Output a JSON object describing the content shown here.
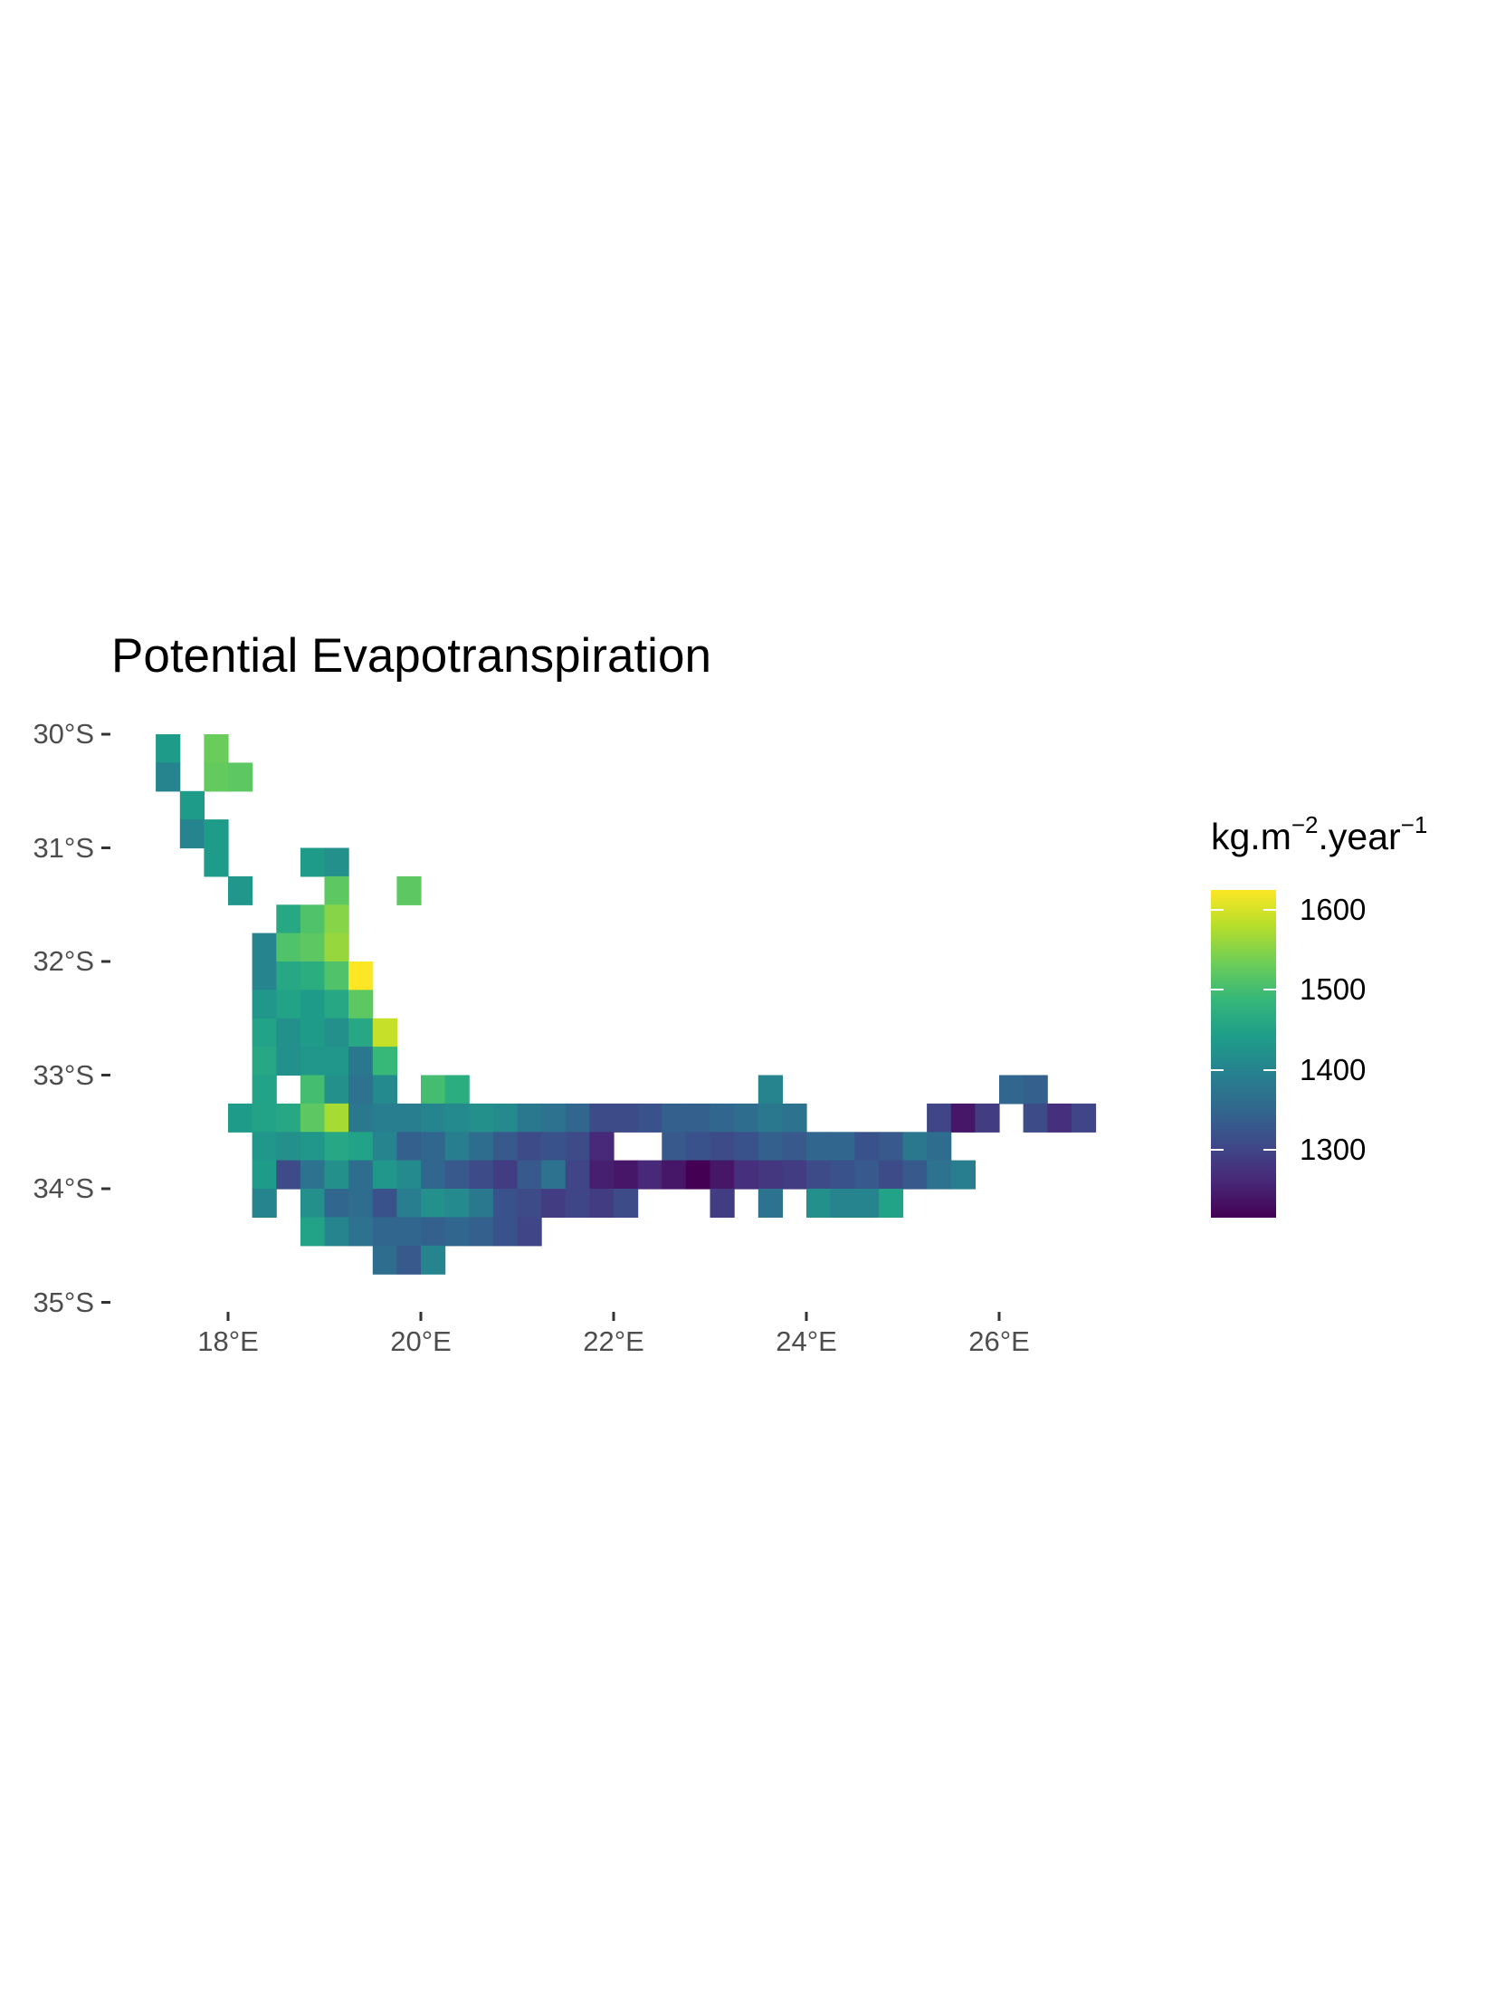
{
  "chart_data": {
    "type": "heatmap",
    "title": "Potential Evapotranspiration",
    "legend": {
      "title_base": "kg.m",
      "title_exp1": "−2",
      "title_mid": ".year",
      "title_exp2": "−1",
      "ticks": [
        "1300",
        "1400",
        "1500",
        "1600"
      ],
      "tick_values": [
        1300,
        1400,
        1500,
        1600
      ],
      "range": [
        1215,
        1625
      ],
      "position": "right",
      "palette": [
        "#440154",
        "#482878",
        "#3e4989",
        "#31688e",
        "#26828e",
        "#1f9e89",
        "#35b779",
        "#6ece58",
        "#b5de2b",
        "#fde725"
      ]
    },
    "x_ticks": [
      "18°E",
      "20°E",
      "22°E",
      "24°E",
      "26°E"
    ],
    "x_tick_values": [
      18,
      20,
      22,
      24,
      26
    ],
    "y_ticks": [
      "30°S",
      "31°S",
      "32°S",
      "33°S",
      "34°S",
      "35°S"
    ],
    "y_tick_values": [
      -30,
      -31,
      -32,
      -33,
      -34,
      -35
    ],
    "xlim": [
      16.95,
      27.1
    ],
    "ylim": [
      -35.0,
      -30.0
    ],
    "grid": false,
    "cell_size_deg": 0.25,
    "cells": [
      [
        17.375,
        -30.125,
        1440
      ],
      [
        17.875,
        -30.125,
        1530
      ],
      [
        17.375,
        -30.375,
        1400
      ],
      [
        17.875,
        -30.375,
        1525
      ],
      [
        18.125,
        -30.375,
        1520
      ],
      [
        17.625,
        -30.625,
        1440
      ],
      [
        17.625,
        -30.875,
        1400
      ],
      [
        17.875,
        -30.875,
        1440
      ],
      [
        17.875,
        -31.125,
        1440
      ],
      [
        18.875,
        -31.125,
        1440
      ],
      [
        19.125,
        -31.125,
        1420
      ],
      [
        18.125,
        -31.375,
        1430
      ],
      [
        19.125,
        -31.375,
        1520
      ],
      [
        19.875,
        -31.375,
        1520
      ],
      [
        18.625,
        -31.625,
        1460
      ],
      [
        18.875,
        -31.625,
        1510
      ],
      [
        19.125,
        -31.625,
        1550
      ],
      [
        18.375,
        -31.875,
        1400
      ],
      [
        18.625,
        -31.875,
        1510
      ],
      [
        18.875,
        -31.875,
        1520
      ],
      [
        19.125,
        -31.875,
        1560
      ],
      [
        18.375,
        -32.125,
        1400
      ],
      [
        18.625,
        -32.125,
        1460
      ],
      [
        18.875,
        -32.125,
        1470
      ],
      [
        19.125,
        -32.125,
        1510
      ],
      [
        19.375,
        -32.125,
        1625
      ],
      [
        18.375,
        -32.375,
        1430
      ],
      [
        18.625,
        -32.375,
        1450
      ],
      [
        18.875,
        -32.375,
        1440
      ],
      [
        19.125,
        -32.375,
        1460
      ],
      [
        19.375,
        -32.375,
        1520
      ],
      [
        18.375,
        -32.625,
        1450
      ],
      [
        18.625,
        -32.625,
        1420
      ],
      [
        18.875,
        -32.625,
        1440
      ],
      [
        19.125,
        -32.625,
        1420
      ],
      [
        19.375,
        -32.625,
        1460
      ],
      [
        19.625,
        -32.625,
        1590
      ],
      [
        18.375,
        -32.875,
        1460
      ],
      [
        18.625,
        -32.875,
        1420
      ],
      [
        18.875,
        -32.875,
        1430
      ],
      [
        19.125,
        -32.875,
        1430
      ],
      [
        19.375,
        -32.875,
        1380
      ],
      [
        19.625,
        -32.875,
        1490
      ],
      [
        18.375,
        -33.125,
        1450
      ],
      [
        18.875,
        -33.125,
        1500
      ],
      [
        19.125,
        -33.125,
        1420
      ],
      [
        19.375,
        -33.125,
        1370
      ],
      [
        19.625,
        -33.125,
        1410
      ],
      [
        20.125,
        -33.125,
        1500
      ],
      [
        20.375,
        -33.125,
        1470
      ],
      [
        23.625,
        -33.125,
        1400
      ],
      [
        26.125,
        -33.125,
        1350
      ],
      [
        26.375,
        -33.125,
        1340
      ],
      [
        18.125,
        -33.375,
        1440
      ],
      [
        18.375,
        -33.375,
        1450
      ],
      [
        18.625,
        -33.375,
        1460
      ],
      [
        18.875,
        -33.375,
        1520
      ],
      [
        19.125,
        -33.375,
        1570
      ],
      [
        19.375,
        -33.375,
        1380
      ],
      [
        19.625,
        -33.375,
        1390
      ],
      [
        19.875,
        -33.375,
        1390
      ],
      [
        20.125,
        -33.375,
        1400
      ],
      [
        20.375,
        -33.375,
        1410
      ],
      [
        20.625,
        -33.375,
        1420
      ],
      [
        20.875,
        -33.375,
        1410
      ],
      [
        21.125,
        -33.375,
        1380
      ],
      [
        21.375,
        -33.375,
        1370
      ],
      [
        21.625,
        -33.375,
        1350
      ],
      [
        21.875,
        -33.375,
        1310
      ],
      [
        22.125,
        -33.375,
        1310
      ],
      [
        22.375,
        -33.375,
        1320
      ],
      [
        22.625,
        -33.375,
        1340
      ],
      [
        22.875,
        -33.375,
        1340
      ],
      [
        23.125,
        -33.375,
        1350
      ],
      [
        23.375,
        -33.375,
        1360
      ],
      [
        23.625,
        -33.375,
        1380
      ],
      [
        23.875,
        -33.375,
        1370
      ],
      [
        25.375,
        -33.375,
        1300
      ],
      [
        25.625,
        -33.375,
        1240
      ],
      [
        25.875,
        -33.375,
        1290
      ],
      [
        26.375,
        -33.375,
        1310
      ],
      [
        26.625,
        -33.375,
        1270
      ],
      [
        26.875,
        -33.375,
        1300
      ],
      [
        18.375,
        -33.625,
        1430
      ],
      [
        18.625,
        -33.625,
        1420
      ],
      [
        18.875,
        -33.625,
        1430
      ],
      [
        19.125,
        -33.625,
        1460
      ],
      [
        19.375,
        -33.625,
        1450
      ],
      [
        19.625,
        -33.625,
        1400
      ],
      [
        19.875,
        -33.625,
        1340
      ],
      [
        20.125,
        -33.625,
        1350
      ],
      [
        20.375,
        -33.625,
        1390
      ],
      [
        20.625,
        -33.625,
        1360
      ],
      [
        20.875,
        -33.625,
        1330
      ],
      [
        21.125,
        -33.625,
        1310
      ],
      [
        21.375,
        -33.625,
        1320
      ],
      [
        21.625,
        -33.625,
        1310
      ],
      [
        21.875,
        -33.625,
        1260
      ],
      [
        22.625,
        -33.625,
        1330
      ],
      [
        22.875,
        -33.625,
        1320
      ],
      [
        23.125,
        -33.625,
        1310
      ],
      [
        23.375,
        -33.625,
        1320
      ],
      [
        23.625,
        -33.625,
        1340
      ],
      [
        23.875,
        -33.625,
        1330
      ],
      [
        24.125,
        -33.625,
        1350
      ],
      [
        24.375,
        -33.625,
        1350
      ],
      [
        24.625,
        -33.625,
        1320
      ],
      [
        24.875,
        -33.625,
        1330
      ],
      [
        25.125,
        -33.625,
        1380
      ],
      [
        25.375,
        -33.625,
        1360
      ],
      [
        18.375,
        -33.875,
        1440
      ],
      [
        18.625,
        -33.875,
        1310
      ],
      [
        18.875,
        -33.875,
        1370
      ],
      [
        19.125,
        -33.875,
        1420
      ],
      [
        19.375,
        -33.875,
        1360
      ],
      [
        19.625,
        -33.875,
        1430
      ],
      [
        19.875,
        -33.875,
        1410
      ],
      [
        20.125,
        -33.875,
        1350
      ],
      [
        20.375,
        -33.875,
        1330
      ],
      [
        20.625,
        -33.875,
        1310
      ],
      [
        20.875,
        -33.875,
        1290
      ],
      [
        21.125,
        -33.875,
        1330
      ],
      [
        21.375,
        -33.875,
        1370
      ],
      [
        21.625,
        -33.875,
        1300
      ],
      [
        21.875,
        -33.875,
        1250
      ],
      [
        22.125,
        -33.875,
        1240
      ],
      [
        22.375,
        -33.875,
        1260
      ],
      [
        22.625,
        -33.875,
        1240
      ],
      [
        22.875,
        -33.875,
        1215
      ],
      [
        23.125,
        -33.875,
        1240
      ],
      [
        23.375,
        -33.875,
        1270
      ],
      [
        23.625,
        -33.875,
        1280
      ],
      [
        23.875,
        -33.875,
        1290
      ],
      [
        24.125,
        -33.875,
        1310
      ],
      [
        24.375,
        -33.875,
        1320
      ],
      [
        24.625,
        -33.875,
        1330
      ],
      [
        24.875,
        -33.875,
        1310
      ],
      [
        25.125,
        -33.875,
        1330
      ],
      [
        25.375,
        -33.875,
        1370
      ],
      [
        25.625,
        -33.875,
        1390
      ],
      [
        18.375,
        -34.125,
        1400
      ],
      [
        18.875,
        -34.125,
        1420
      ],
      [
        19.125,
        -34.125,
        1350
      ],
      [
        19.375,
        -34.125,
        1360
      ],
      [
        19.625,
        -34.125,
        1320
      ],
      [
        19.875,
        -34.125,
        1390
      ],
      [
        20.125,
        -34.125,
        1420
      ],
      [
        20.375,
        -34.125,
        1410
      ],
      [
        20.625,
        -34.125,
        1380
      ],
      [
        20.875,
        -34.125,
        1320
      ],
      [
        21.125,
        -34.125,
        1310
      ],
      [
        21.375,
        -34.125,
        1290
      ],
      [
        21.625,
        -34.125,
        1300
      ],
      [
        21.875,
        -34.125,
        1290
      ],
      [
        22.125,
        -34.125,
        1310
      ],
      [
        23.125,
        -34.125,
        1290
      ],
      [
        23.625,
        -34.125,
        1370
      ],
      [
        24.125,
        -34.125,
        1420
      ],
      [
        24.375,
        -34.125,
        1400
      ],
      [
        24.625,
        -34.125,
        1400
      ],
      [
        24.875,
        -34.125,
        1450
      ],
      [
        18.875,
        -34.375,
        1450
      ],
      [
        19.125,
        -34.375,
        1400
      ],
      [
        19.375,
        -34.375,
        1370
      ],
      [
        19.625,
        -34.375,
        1350
      ],
      [
        19.875,
        -34.375,
        1350
      ],
      [
        20.125,
        -34.375,
        1340
      ],
      [
        20.375,
        -34.375,
        1350
      ],
      [
        20.625,
        -34.375,
        1340
      ],
      [
        20.875,
        -34.375,
        1320
      ],
      [
        21.125,
        -34.375,
        1300
      ],
      [
        19.625,
        -34.625,
        1360
      ],
      [
        19.875,
        -34.625,
        1330
      ],
      [
        20.125,
        -34.625,
        1400
      ]
    ]
  }
}
